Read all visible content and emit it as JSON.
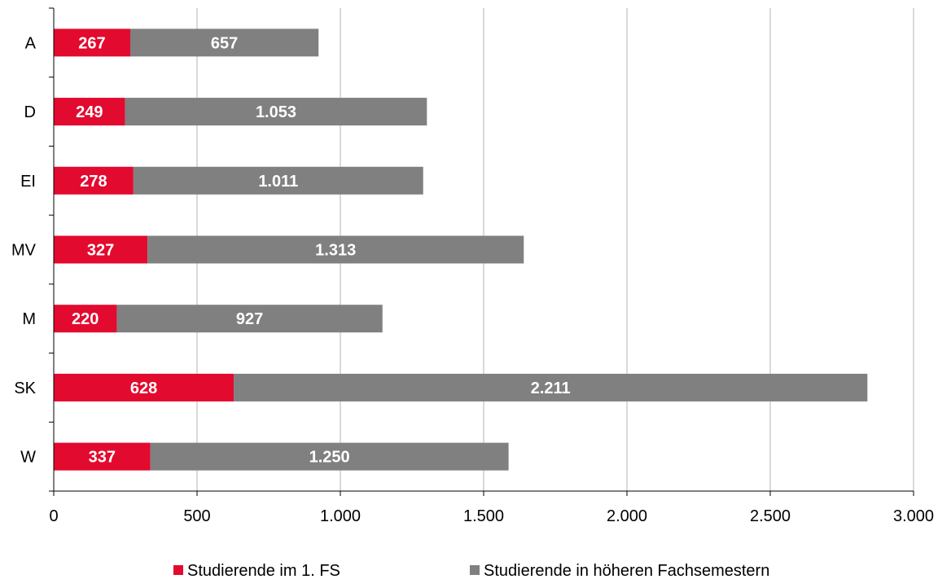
{
  "chart_data": {
    "type": "bar",
    "orientation": "horizontal",
    "stacked": true,
    "categories": [
      "A",
      "D",
      "EI",
      "MV",
      "M",
      "SK",
      "W"
    ],
    "series": [
      {
        "name": "Studierende im 1. FS",
        "color": "#e30a2f",
        "values": [
          267,
          249,
          278,
          327,
          220,
          628,
          337
        ],
        "labels": [
          "267",
          "249",
          "278",
          "327",
          "220",
          "628",
          "337"
        ]
      },
      {
        "name": "Studierende in höheren Fachsemestern",
        "color": "#808080",
        "values": [
          657,
          1053,
          1011,
          1313,
          927,
          2211,
          1250
        ],
        "labels": [
          "657",
          "1.053",
          "1.011",
          "1.313",
          "927",
          "2.211",
          "1.250"
        ]
      }
    ],
    "xlim": [
      0,
      3000
    ],
    "xticks": [
      0,
      500,
      1000,
      1500,
      2000,
      2500,
      3000
    ],
    "xtick_labels": [
      "0",
      "500",
      "1.000",
      "1.500",
      "2.000",
      "2.500",
      "3.000"
    ],
    "grid": true,
    "legend_position": "bottom",
    "title": "",
    "xlabel": "",
    "ylabel": ""
  }
}
